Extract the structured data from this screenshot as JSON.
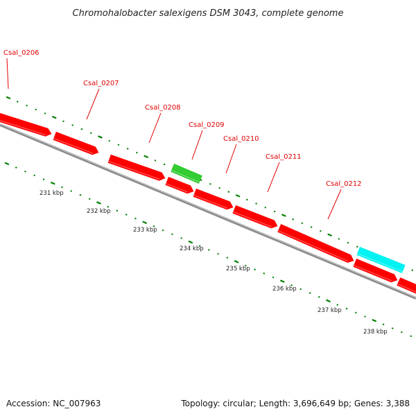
{
  "title": "Chromohalobacter salexigens DSM 3043, complete genome",
  "footer": {
    "accession": "Accession: NC_007963",
    "info": "Topology: circular; Length: 3,696,649 bp; Genes: 3,388"
  },
  "colors": {
    "gene_red": "#ff0000",
    "gene_green": "#33cc33",
    "gene_cyan": "#00f2f2",
    "label_red": "#e00000",
    "tick_green": "#008000",
    "backbone_gray": "#8c8c8c"
  },
  "gene_labels": [
    "Csal_0206",
    "Csal_0207",
    "Csal_0208",
    "Csal_0209",
    "Csal_0210",
    "Csal_0211",
    "Csal_0212"
  ],
  "kbp_labels": [
    "231 kbp",
    "232 kbp",
    "233 kbp",
    "234 kbp",
    "235 kbp",
    "236 kbp",
    "237 kbp",
    "238 kbp"
  ]
}
